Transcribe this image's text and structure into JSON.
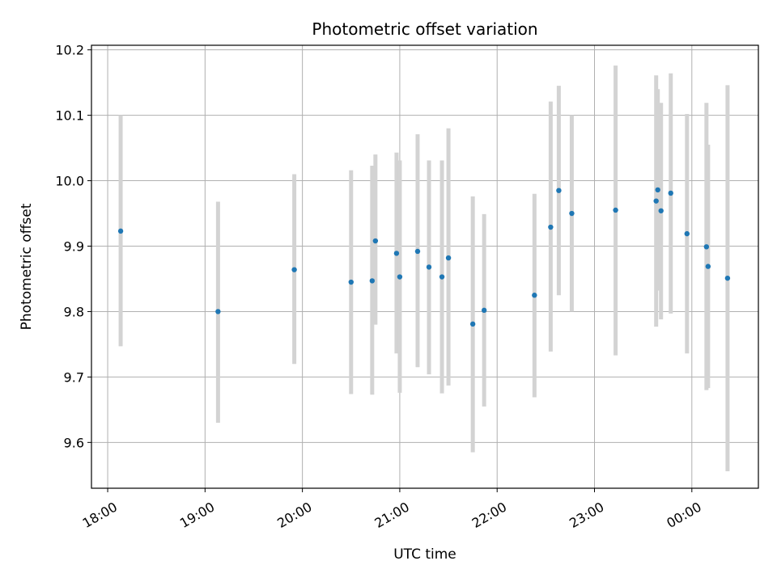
{
  "chart_data": {
    "type": "scatter",
    "title": "Photometric offset variation",
    "xlabel": "UTC time",
    "ylabel": "Photometric offset",
    "x_unit": "UTC time",
    "xlim": [
      "17:50",
      "00:41"
    ],
    "ylim": [
      9.53,
      10.207
    ],
    "grid": true,
    "x_ticks": [
      "18:00",
      "19:00",
      "20:00",
      "21:00",
      "22:00",
      "23:00",
      "00:00"
    ],
    "y_ticks": [
      9.6,
      9.7,
      9.8,
      9.9,
      10.0,
      10.1,
      10.2
    ],
    "y_tick_labels": [
      "9.6",
      "9.7",
      "9.8",
      "9.9",
      "10.0",
      "10.1",
      "10.2"
    ],
    "colors": {
      "point": "#1f77b4",
      "errorbar": "#d3d3d3",
      "grid": "#b0b0b0",
      "axis": "#000000"
    },
    "points": [
      {
        "x": "18:08",
        "y": 9.923,
        "ylow": 9.747,
        "yhigh": 10.1
      },
      {
        "x": "19:08",
        "y": 9.8,
        "ylow": 9.63,
        "yhigh": 9.968
      },
      {
        "x": "19:55",
        "y": 9.864,
        "ylow": 9.72,
        "yhigh": 10.01
      },
      {
        "x": "20:30",
        "y": 9.845,
        "ylow": 9.674,
        "yhigh": 10.016
      },
      {
        "x": "20:43",
        "y": 9.847,
        "ylow": 9.673,
        "yhigh": 10.023
      },
      {
        "x": "20:45",
        "y": 9.908,
        "ylow": 9.78,
        "yhigh": 10.04
      },
      {
        "x": "20:58",
        "y": 9.889,
        "ylow": 9.736,
        "yhigh": 10.043
      },
      {
        "x": "21:00",
        "y": 9.853,
        "ylow": 9.676,
        "yhigh": 10.031
      },
      {
        "x": "21:11",
        "y": 9.892,
        "ylow": 9.715,
        "yhigh": 10.071
      },
      {
        "x": "21:18",
        "y": 9.868,
        "ylow": 9.704,
        "yhigh": 10.031
      },
      {
        "x": "21:26",
        "y": 9.853,
        "ylow": 9.675,
        "yhigh": 10.031
      },
      {
        "x": "21:30",
        "y": 9.882,
        "ylow": 9.687,
        "yhigh": 10.08
      },
      {
        "x": "21:45",
        "y": 9.781,
        "ylow": 9.585,
        "yhigh": 9.976
      },
      {
        "x": "21:52",
        "y": 9.802,
        "ylow": 9.655,
        "yhigh": 9.949
      },
      {
        "x": "22:23",
        "y": 9.825,
        "ylow": 9.669,
        "yhigh": 9.98
      },
      {
        "x": "22:33",
        "y": 9.929,
        "ylow": 9.739,
        "yhigh": 10.121
      },
      {
        "x": "22:38",
        "y": 9.985,
        "ylow": 9.825,
        "yhigh": 10.145
      },
      {
        "x": "22:46",
        "y": 9.95,
        "ylow": 9.8,
        "yhigh": 10.1
      },
      {
        "x": "23:13",
        "y": 9.955,
        "ylow": 9.733,
        "yhigh": 10.176
      },
      {
        "x": "23:38",
        "y": 9.969,
        "ylow": 9.777,
        "yhigh": 10.161
      },
      {
        "x": "23:39",
        "y": 9.986,
        "ylow": 9.832,
        "yhigh": 10.14
      },
      {
        "x": "23:41",
        "y": 9.954,
        "ylow": 9.788,
        "yhigh": 10.119
      },
      {
        "x": "23:47",
        "y": 9.981,
        "ylow": 9.797,
        "yhigh": 10.164
      },
      {
        "x": "23:57",
        "y": 9.919,
        "ylow": 9.736,
        "yhigh": 10.102
      },
      {
        "x": "00:09",
        "y": 9.899,
        "ylow": 9.68,
        "yhigh": 10.119
      },
      {
        "x": "00:10",
        "y": 9.869,
        "ylow": 9.683,
        "yhigh": 10.055
      },
      {
        "x": "00:22",
        "y": 9.851,
        "ylow": 9.556,
        "yhigh": 10.146
      }
    ]
  }
}
